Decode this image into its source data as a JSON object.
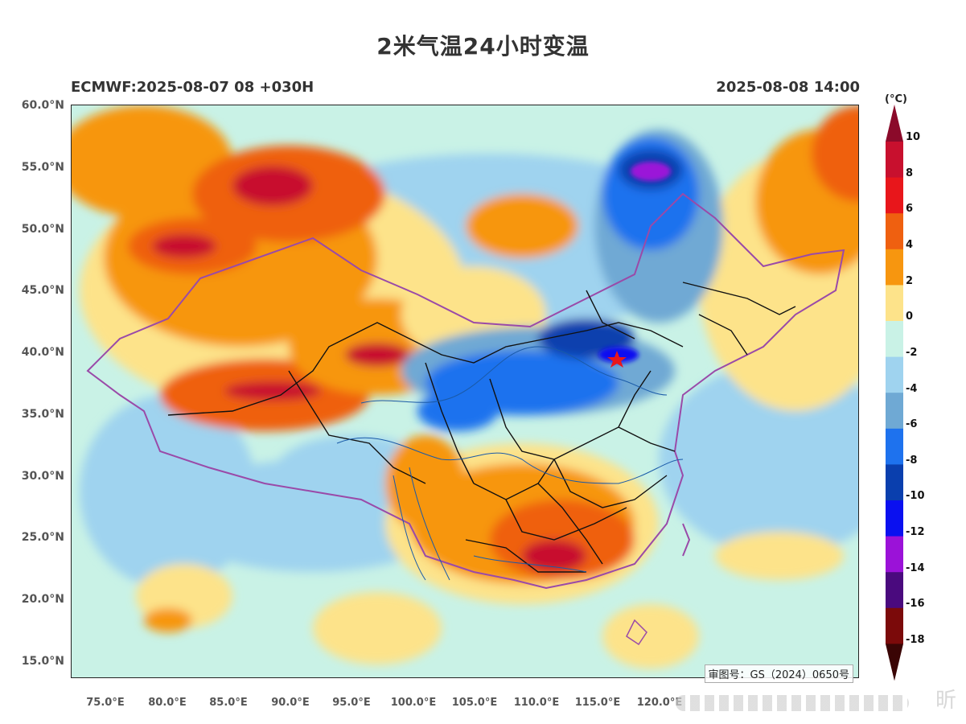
{
  "title": "2米气温24小时变温",
  "subtitle_left": "ECMWF:2025-08-07 08 +030H",
  "subtitle_right": "2025-08-08 14:00",
  "lat_labels": [
    "60.0°N",
    "55.0°N",
    "50.0°N",
    "45.0°N",
    "40.0°N",
    "35.0°N",
    "30.0°N",
    "25.0°N",
    "20.0°N",
    "15.0°N"
  ],
  "lon_labels": [
    "75.0°E",
    "80.0°E",
    "85.0°E",
    "90.0°E",
    "95.0°E",
    "100.0°E",
    "105.0°E",
    "110.0°E",
    "115.0°E",
    "120.0°E"
  ],
  "colorbar": {
    "unit": "(°C)",
    "labels": [
      "10",
      "8",
      "6",
      "4",
      "2",
      "0",
      "-2",
      "-4",
      "-6",
      "-8",
      "-10",
      "-12",
      "-14",
      "-16",
      "-18"
    ],
    "colors": [
      "#8b0a2a",
      "#c8102e",
      "#e8161b",
      "#ef6010",
      "#f7960f",
      "#fde38a",
      "#c9f2e6",
      "#9fd3ef",
      "#6fa9d4",
      "#1e72ee",
      "#0a3fae",
      "#0a10f0",
      "#9b12d8",
      "#4a0a7e",
      "#7b0a0a",
      "#3a0505"
    ]
  },
  "approval_number": "审图号：GS（2024）0650号",
  "watermark": "昕"
}
